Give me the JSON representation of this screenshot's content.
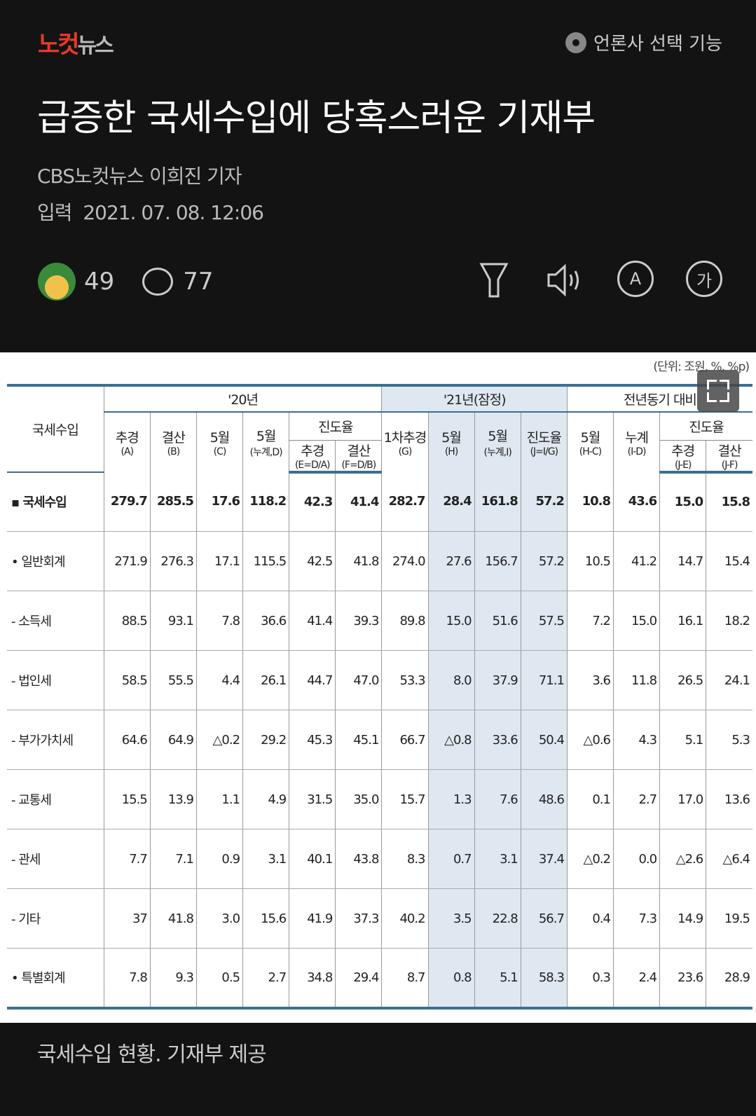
{
  "header": {
    "logo_red": "노컷",
    "logo_gray": "뉴스",
    "press_select": "언론사 선택 기능"
  },
  "article": {
    "title": "급증한 국세수입에 당혹스러운 기재부",
    "byline": "CBS노컷뉴스 이희진 기자",
    "date_label": "입력",
    "date": "2021. 07. 08. 12:06",
    "reactions": "49",
    "comments": "77"
  },
  "toolbar": {
    "icons": [
      "filter-icon",
      "speaker-icon",
      "translate-icon",
      "font-size-icon"
    ],
    "font_label": "가",
    "translate_label": "A"
  },
  "table": {
    "unit": "(단위: 조원, %, %p)",
    "row_header": "국세수입",
    "groups": [
      "'20년",
      "'21년(잠정)",
      "전년동기 대비"
    ],
    "progress": "진도율",
    "cols": [
      [
        "추경",
        "(A)"
      ],
      [
        "결산",
        "(B)"
      ],
      [
        "5월",
        "(C)"
      ],
      [
        "5월",
        "(누계,D)"
      ],
      [
        "추경",
        "(E=D/A)"
      ],
      [
        "결산",
        "(F=D/B)"
      ],
      [
        "1차추경",
        "(G)"
      ],
      [
        "5월",
        "(H)"
      ],
      [
        "5월",
        "(누계,I)"
      ],
      [
        "진도율",
        "(J=I/G)"
      ],
      [
        "5월",
        "(H-C)"
      ],
      [
        "누계",
        "(I-D)"
      ],
      [
        "추경",
        "(J-E)"
      ],
      [
        "결산",
        "(J-F)"
      ]
    ],
    "rows": [
      {
        "label": "▪ 국세수입",
        "values": [
          "279.7",
          "285.5",
          "17.6",
          "118.2",
          "42.3",
          "41.4",
          "282.7",
          "28.4",
          "161.8",
          "57.2",
          "10.8",
          "43.6",
          "15.0",
          "15.8"
        ]
      },
      {
        "label": "• 일반회계",
        "values": [
          "271.9",
          "276.3",
          "17.1",
          "115.5",
          "42.5",
          "41.8",
          "274.0",
          "27.6",
          "156.7",
          "57.2",
          "10.5",
          "41.2",
          "14.7",
          "15.4"
        ]
      },
      {
        "label": "- 소득세",
        "values": [
          "88.5",
          "93.1",
          "7.8",
          "36.6",
          "41.4",
          "39.3",
          "89.8",
          "15.0",
          "51.6",
          "57.5",
          "7.2",
          "15.0",
          "16.1",
          "18.2"
        ]
      },
      {
        "label": "- 법인세",
        "values": [
          "58.5",
          "55.5",
          "4.4",
          "26.1",
          "44.7",
          "47.0",
          "53.3",
          "8.0",
          "37.9",
          "71.1",
          "3.6",
          "11.8",
          "26.5",
          "24.1"
        ]
      },
      {
        "label": "- 부가가치세",
        "values": [
          "64.6",
          "64.9",
          "△0.2",
          "29.2",
          "45.3",
          "45.1",
          "66.7",
          "△0.8",
          "33.6",
          "50.4",
          "△0.6",
          "4.3",
          "5.1",
          "5.3"
        ]
      },
      {
        "label": "- 교통세",
        "values": [
          "15.5",
          "13.9",
          "1.1",
          "4.9",
          "31.5",
          "35.0",
          "15.7",
          "1.3",
          "7.6",
          "48.6",
          "0.1",
          "2.7",
          "17.0",
          "13.6"
        ]
      },
      {
        "label": "- 관세",
        "values": [
          "7.7",
          "7.1",
          "0.9",
          "3.1",
          "40.1",
          "43.8",
          "8.3",
          "0.7",
          "3.1",
          "37.4",
          "△0.2",
          "0.0",
          "△2.6",
          "△6.4"
        ]
      },
      {
        "label": "- 기타",
        "values": [
          "37",
          "41.8",
          "3.0",
          "15.6",
          "41.9",
          "37.3",
          "40.2",
          "3.5",
          "22.8",
          "56.7",
          "0.4",
          "7.3",
          "14.9",
          "19.5"
        ]
      },
      {
        "label": "• 특별회계",
        "values": [
          "7.8",
          "9.3",
          "0.5",
          "2.7",
          "34.8",
          "29.4",
          "8.7",
          "0.8",
          "5.1",
          "58.3",
          "0.3",
          "2.4",
          "23.6",
          "28.9"
        ]
      }
    ]
  },
  "caption": "국세수입 현황. 기재부 제공",
  "colors": {
    "background": "#131313",
    "logo_red": "#e53a2a",
    "table_rule": "#3b6f93",
    "shade": "#dfe8f0"
  }
}
